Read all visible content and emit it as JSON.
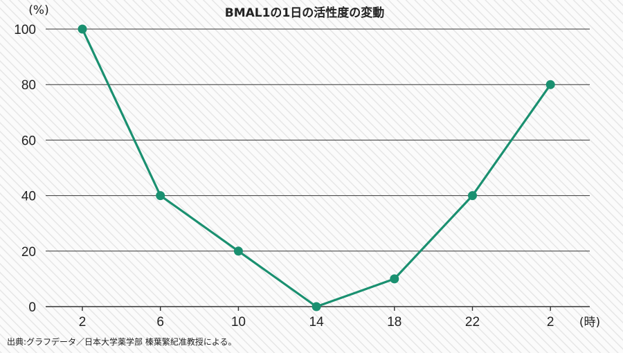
{
  "chart_data": {
    "type": "line",
    "title": "BMAL1の1日の活性度の変動",
    "y_unit_label": "(%)",
    "x_unit_label": "(時)",
    "categories": [
      "2",
      "6",
      "10",
      "14",
      "18",
      "22",
      "2"
    ],
    "values": [
      100,
      40,
      20,
      0,
      10,
      40,
      80
    ],
    "yticks": [
      0,
      20,
      40,
      60,
      80,
      100
    ],
    "ylim": [
      0,
      100
    ],
    "grid": true,
    "line_color": "#1a9070",
    "source": "出典:グラフデータ／日本大学薬学部 榛葉繁紀准教授による。"
  }
}
